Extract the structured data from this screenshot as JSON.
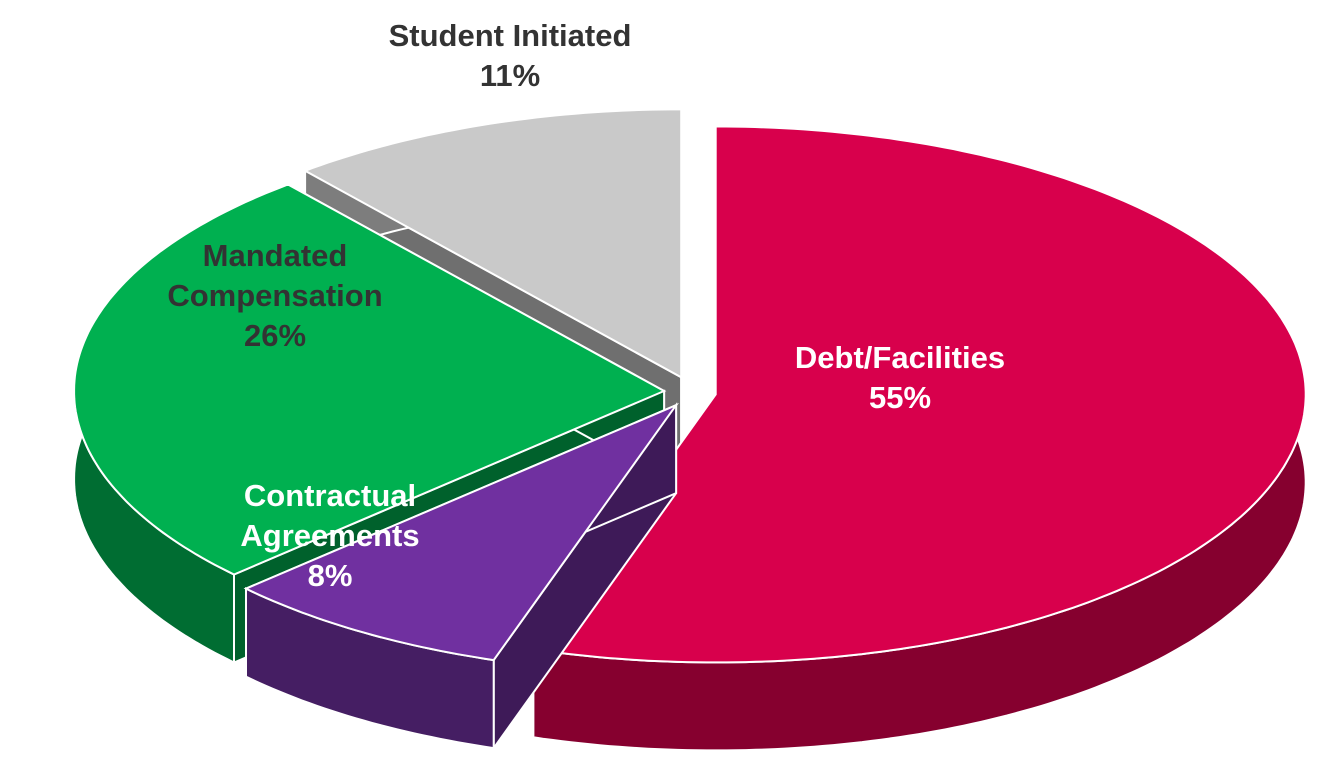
{
  "chart_data": {
    "type": "pie",
    "categories": [
      "Debt/Facilities",
      "Contractual Agreements",
      "Mandated Compensation",
      "Student Initiated"
    ],
    "values": [
      55,
      8,
      26,
      11
    ],
    "value_labels": [
      "55%",
      "8%",
      "26%",
      "11%"
    ],
    "colors": [
      "#d8004c",
      "#7030a0",
      "#00b050",
      "#c9c9c9"
    ]
  }
}
